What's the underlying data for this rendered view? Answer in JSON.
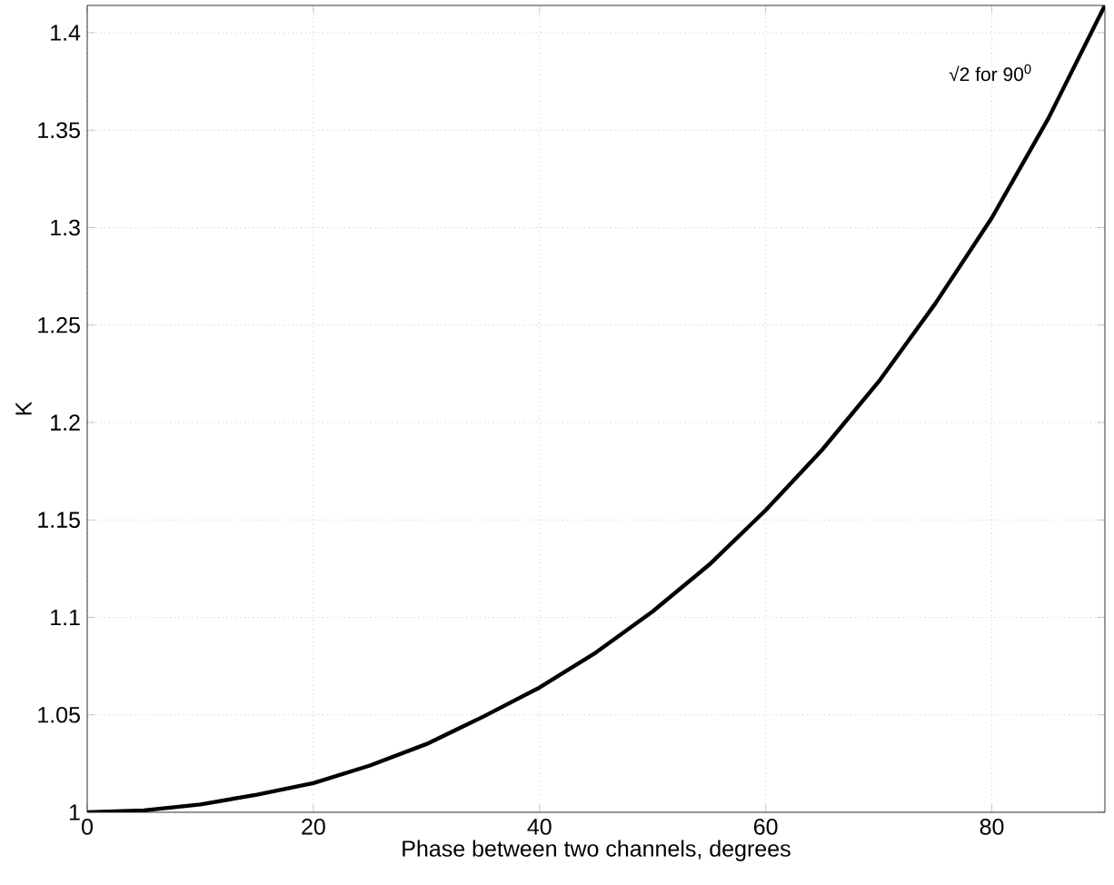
{
  "chart_data": {
    "type": "line",
    "xlabel": "Phase between two channels, degrees",
    "ylabel": "K",
    "annotations": [
      "√2 for 90$^{0}$"
    ],
    "x": [
      0,
      5,
      10,
      15,
      20,
      25,
      30,
      35,
      40,
      45,
      50,
      55,
      60,
      65,
      70,
      75,
      80,
      85,
      90
    ],
    "series": [
      {
        "color": "#000000",
        "values": [
          1.0,
          1.001,
          1.004,
          1.009,
          1.015,
          1.024,
          1.035,
          1.049,
          1.064,
          1.082,
          1.103,
          1.127,
          1.155,
          1.186,
          1.221,
          1.261,
          1.305,
          1.356,
          1.414
        ]
      }
    ],
    "xlim": [
      0,
      90
    ],
    "ylim": [
      1,
      1.414
    ],
    "xticks": [
      0,
      20,
      40,
      60,
      80
    ],
    "yticks": [
      1,
      1.05,
      1.1,
      1.15,
      1.2,
      1.25,
      1.3,
      1.35,
      1.4
    ],
    "grid": true,
    "marker": "none",
    "line_style": "solid"
  }
}
